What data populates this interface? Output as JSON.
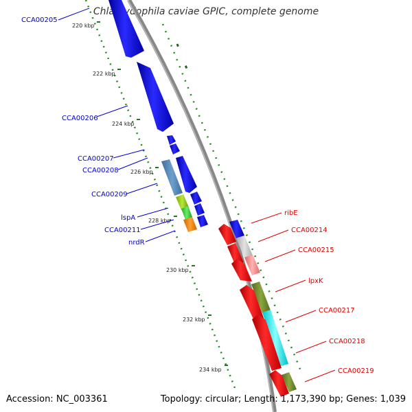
{
  "title": "Chlamydophila caviae GPIC, complete genome",
  "footer": {
    "accession": "Accession: NC_003361",
    "topology": "Topology: circular; Length: 1,173,390 bp; Genes: 1,039"
  },
  "colors": {
    "backbone": "#888888",
    "forward_label": "#0000cc",
    "reverse_label": "#dd0000",
    "tick": "#227722"
  },
  "ruler_ticks": [
    {
      "label": "220 kbp"
    },
    {
      "label": "222 kbp"
    },
    {
      "label": "224 kbp"
    },
    {
      "label": "226 kbp"
    },
    {
      "label": "228 kbp"
    },
    {
      "label": "230 kbp"
    },
    {
      "label": "232 kbp"
    },
    {
      "label": "234 kbp"
    }
  ],
  "left_labels": [
    {
      "text": "CCA00205"
    },
    {
      "text": "CCA00206"
    },
    {
      "text": "CCA00207"
    },
    {
      "text": "CCA00208"
    },
    {
      "text": "CCA00209"
    },
    {
      "text": "lspA"
    },
    {
      "text": "CCA00211"
    },
    {
      "text": "nrdR"
    }
  ],
  "right_labels": [
    {
      "text": "ribE"
    },
    {
      "text": "CCA00214"
    },
    {
      "text": "CCA00215"
    },
    {
      "text": "lpxK"
    },
    {
      "text": "CCA00217"
    },
    {
      "text": "CCA00218"
    },
    {
      "text": "CCA00219"
    }
  ]
}
